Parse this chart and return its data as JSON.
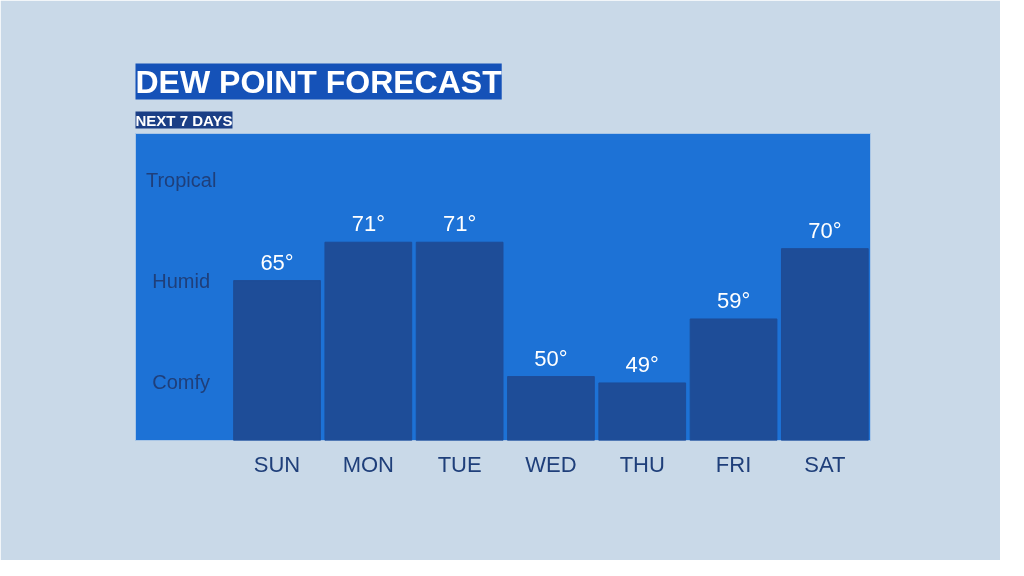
{
  "chart_data": {
    "type": "bar",
    "title": "DEW POINT FORECAST",
    "subtitle": "NEXT 7 DAYS",
    "categories": [
      "SUN",
      "MON",
      "TUE",
      "WED",
      "THU",
      "FRI",
      "SAT"
    ],
    "values": [
      65,
      71,
      71,
      50,
      49,
      59,
      70
    ],
    "value_labels": [
      "65°",
      "71°",
      "71°",
      "50°",
      "49°",
      "59°",
      "70°"
    ],
    "color": "#1e4d98",
    "ylim": [
      40,
      88
    ],
    "annotations": [
      "Tropical",
      "Humid",
      "Comfy"
    ],
    "grid": false
  }
}
